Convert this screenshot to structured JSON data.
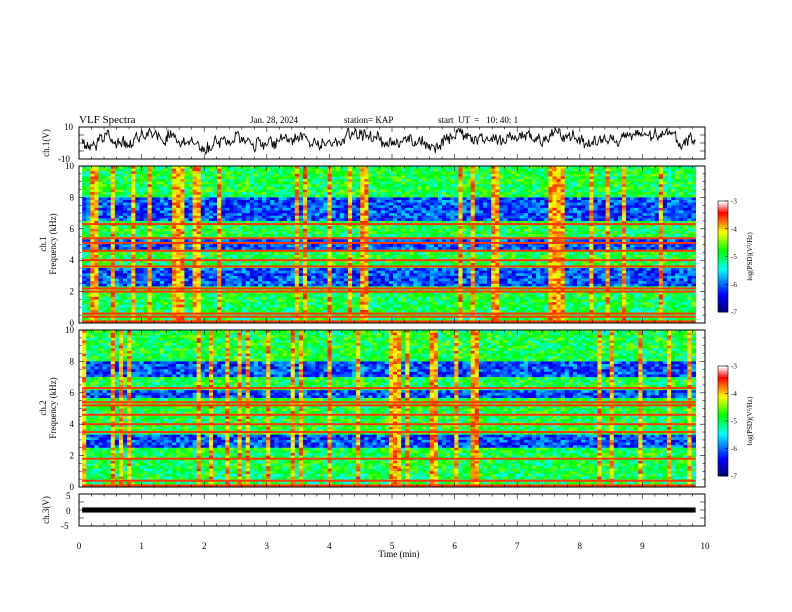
{
  "header": {
    "title": "VLF Spectra",
    "date": "Jan. 28, 2024",
    "station": "station= KAP",
    "start_ut": "start  UT  =   10: 40: 1"
  },
  "chart_data": [
    {
      "type": "line",
      "name": "ch1-waveform",
      "ylabel": "ch.1(V)",
      "ylim": [
        -10,
        10
      ],
      "y_tick_labels": [
        "10",
        "-10"
      ],
      "xlim": [
        0,
        10
      ],
      "x_extent_min": [
        0.05,
        9.85
      ],
      "trace_mean_approx": 2.5,
      "trace_range_approx": [
        -8,
        9
      ]
    },
    {
      "type": "heatmap",
      "name": "ch1-spectrogram",
      "ylabel_line1": "ch.1",
      "ylabel_line2": "Frequency (kHz)",
      "ylim": [
        0,
        10
      ],
      "y_tick_labels": [
        "0",
        "2",
        "4",
        "6",
        "8",
        "10"
      ],
      "xlim": [
        0,
        10
      ],
      "x_extent_min": [
        0.05,
        9.85
      ],
      "colorbar": {
        "label": "log(PSD)(V²/Hz)",
        "range": [
          -7,
          -3
        ],
        "tick_labels": [
          "-3",
          "-4",
          "-5",
          "-6",
          "-7"
        ],
        "colormap": [
          "#00007f",
          "#0000ff",
          "#00ffff",
          "#00ff00",
          "#ffff00",
          "#ff0000",
          "#ffffff"
        ]
      },
      "strong_bands_khz": [
        0.1,
        0.4,
        0.6,
        2.0,
        2.2,
        3.6,
        4.0,
        4.6,
        5.1,
        5.4,
        6.3
      ],
      "weak_bands_khz": [
        [
          4.7,
          5.3
        ],
        [
          6.5,
          8.0
        ],
        [
          2.4,
          3.5
        ]
      ]
    },
    {
      "type": "heatmap",
      "name": "ch2-spectrogram",
      "ylabel_line1": "ch.2",
      "ylabel_line2": "Frequency (kHz)",
      "ylim": [
        0,
        10
      ],
      "y_tick_labels": [
        "0",
        "2",
        "4",
        "6",
        "8",
        "10"
      ],
      "xlim": [
        0,
        10
      ],
      "x_extent_min": [
        0.05,
        9.85
      ],
      "colorbar": {
        "label": "log(PSD)(V²/Hz)",
        "range": [
          -7,
          -3
        ],
        "tick_labels": [
          "-3",
          "-4",
          "-5",
          "-6",
          "-7"
        ],
        "colormap": [
          "#00007f",
          "#0000ff",
          "#00ffff",
          "#00ff00",
          "#ffff00",
          "#ff0000",
          "#ffffff"
        ]
      },
      "strong_bands_khz": [
        0.1,
        0.4,
        1.8,
        3.5,
        4.0,
        4.6,
        5.2,
        5.4,
        6.3
      ],
      "weak_bands_khz": [
        [
          2.5,
          3.3
        ],
        [
          5.6,
          6.2
        ],
        [
          7.0,
          8.0
        ]
      ]
    },
    {
      "type": "line",
      "name": "ch3-waveform",
      "ylabel": "ch.3(V)",
      "ylim": [
        -5,
        5
      ],
      "y_tick_labels": [
        "5",
        "0",
        "-5"
      ],
      "xlim": [
        0,
        10
      ],
      "x_extent_min": [
        0.05,
        9.85
      ],
      "trace_mean_approx": 0,
      "trace_range_approx": [
        -0.8,
        0.8
      ]
    }
  ],
  "x_axis": {
    "label": "Time (min)",
    "tick_labels": [
      "0",
      "1",
      "2",
      "3",
      "4",
      "5",
      "6",
      "7",
      "8",
      "9",
      "10"
    ]
  }
}
